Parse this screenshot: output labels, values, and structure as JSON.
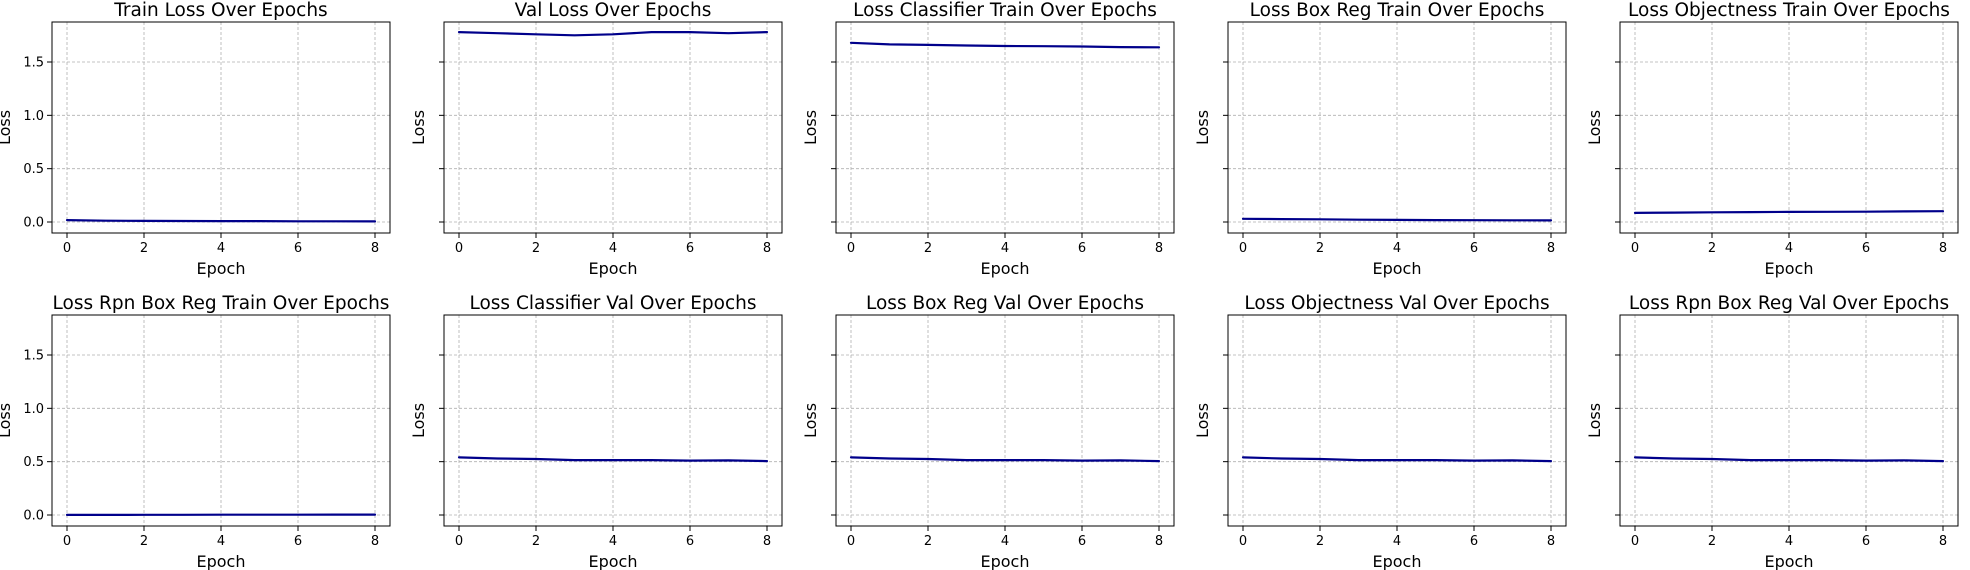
{
  "chart_data": [
    {
      "type": "line",
      "title": "Train Loss Over Epochs",
      "xlabel": "Epoch",
      "ylabel": "Loss",
      "xlim": [
        0,
        8
      ],
      "ylim": [
        0,
        1.8
      ],
      "grid": true,
      "x": [
        0,
        1,
        2,
        3,
        4,
        5,
        6,
        7,
        8
      ],
      "y": [
        0.018,
        0.012,
        0.01,
        0.009,
        0.008,
        0.008,
        0.007,
        0.007,
        0.006
      ],
      "color": "#00008b"
    },
    {
      "type": "line",
      "title": "Val Loss Over Epochs",
      "xlabel": "Epoch",
      "ylabel": "Loss",
      "xlim": [
        0,
        8
      ],
      "ylim": [
        0,
        1.8
      ],
      "grid": true,
      "x": [
        0,
        1,
        2,
        3,
        4,
        5,
        6,
        7,
        8
      ],
      "y": [
        1.78,
        1.77,
        1.76,
        1.75,
        1.76,
        1.78,
        1.78,
        1.77,
        1.78
      ],
      "color": "#00008b"
    },
    {
      "type": "line",
      "title": "Loss Classifier Train Over Epochs",
      "xlabel": "Epoch",
      "ylabel": "Loss",
      "xlim": [
        0,
        8
      ],
      "ylim": [
        0,
        1.8
      ],
      "grid": true,
      "x": [
        0,
        1,
        2,
        3,
        4,
        5,
        6,
        7,
        8
      ],
      "y": [
        1.68,
        1.665,
        1.66,
        1.655,
        1.65,
        1.648,
        1.645,
        1.64,
        1.638
      ],
      "color": "#00008b"
    },
    {
      "type": "line",
      "title": "Loss Box Reg Train Over Epochs",
      "xlabel": "Epoch",
      "ylabel": "Loss",
      "xlim": [
        0,
        8
      ],
      "ylim": [
        0,
        1.8
      ],
      "grid": true,
      "x": [
        0,
        1,
        2,
        3,
        4,
        5,
        6,
        7,
        8
      ],
      "y": [
        0.03,
        0.027,
        0.025,
        0.022,
        0.02,
        0.018,
        0.017,
        0.016,
        0.015
      ],
      "color": "#00008b"
    },
    {
      "type": "line",
      "title": "Loss Objectness Train Over Epochs",
      "xlabel": "Epoch",
      "ylabel": "Loss",
      "xlim": [
        0,
        8
      ],
      "ylim": [
        0,
        1.8
      ],
      "grid": true,
      "x": [
        0,
        1,
        2,
        3,
        4,
        5,
        6,
        7,
        8
      ],
      "y": [
        0.085,
        0.088,
        0.091,
        0.093,
        0.095,
        0.096,
        0.097,
        0.099,
        0.101
      ],
      "color": "#00008b"
    },
    {
      "type": "line",
      "title": "Loss Rpn Box Reg Train Over Epochs",
      "xlabel": "Epoch",
      "ylabel": "Loss",
      "xlim": [
        0,
        8
      ],
      "ylim": [
        0,
        1.8
      ],
      "grid": true,
      "x": [
        0,
        1,
        2,
        3,
        4,
        5,
        6,
        7,
        8
      ],
      "y": [
        0.001,
        0.001,
        0.002,
        0.002,
        0.003,
        0.003,
        0.003,
        0.004,
        0.004
      ],
      "color": "#00008b"
    },
    {
      "type": "line",
      "title": "Loss Classifier Val Over Epochs",
      "xlabel": "Epoch",
      "ylabel": "Loss",
      "xlim": [
        0,
        8
      ],
      "ylim": [
        0,
        1.8
      ],
      "grid": true,
      "x": [
        0,
        1,
        2,
        3,
        4,
        5,
        6,
        7,
        8
      ],
      "y": [
        0.54,
        0.53,
        0.525,
        0.515,
        0.515,
        0.515,
        0.51,
        0.512,
        0.505
      ],
      "color": "#00008b"
    },
    {
      "type": "line",
      "title": "Loss Box Reg Val Over Epochs",
      "xlabel": "Epoch",
      "ylabel": "Loss",
      "xlim": [
        0,
        8
      ],
      "ylim": [
        0,
        1.8
      ],
      "grid": true,
      "x": [
        0,
        1,
        2,
        3,
        4,
        5,
        6,
        7,
        8
      ],
      "y": [
        0.54,
        0.53,
        0.525,
        0.515,
        0.515,
        0.515,
        0.51,
        0.512,
        0.505
      ],
      "color": "#00008b"
    },
    {
      "type": "line",
      "title": "Loss Objectness Val Over Epochs",
      "xlabel": "Epoch",
      "ylabel": "Loss",
      "xlim": [
        0,
        8
      ],
      "ylim": [
        0,
        1.8
      ],
      "grid": true,
      "x": [
        0,
        1,
        2,
        3,
        4,
        5,
        6,
        7,
        8
      ],
      "y": [
        0.54,
        0.53,
        0.525,
        0.515,
        0.515,
        0.515,
        0.51,
        0.512,
        0.505
      ],
      "color": "#00008b"
    },
    {
      "type": "line",
      "title": "Loss Rpn Box Reg Val Over Epochs",
      "xlabel": "Epoch",
      "ylabel": "Loss",
      "xlim": [
        0,
        8
      ],
      "ylim": [
        0,
        1.8
      ],
      "grid": true,
      "x": [
        0,
        1,
        2,
        3,
        4,
        5,
        6,
        7,
        8
      ],
      "y": [
        0.54,
        0.53,
        0.525,
        0.515,
        0.515,
        0.515,
        0.51,
        0.512,
        0.505
      ],
      "color": "#00008b"
    }
  ],
  "axes": {
    "x_ticks": [
      "0",
      "2",
      "4",
      "6",
      "8"
    ],
    "y_ticks": [
      "0.0",
      "0.5",
      "1.0",
      "1.5"
    ]
  }
}
